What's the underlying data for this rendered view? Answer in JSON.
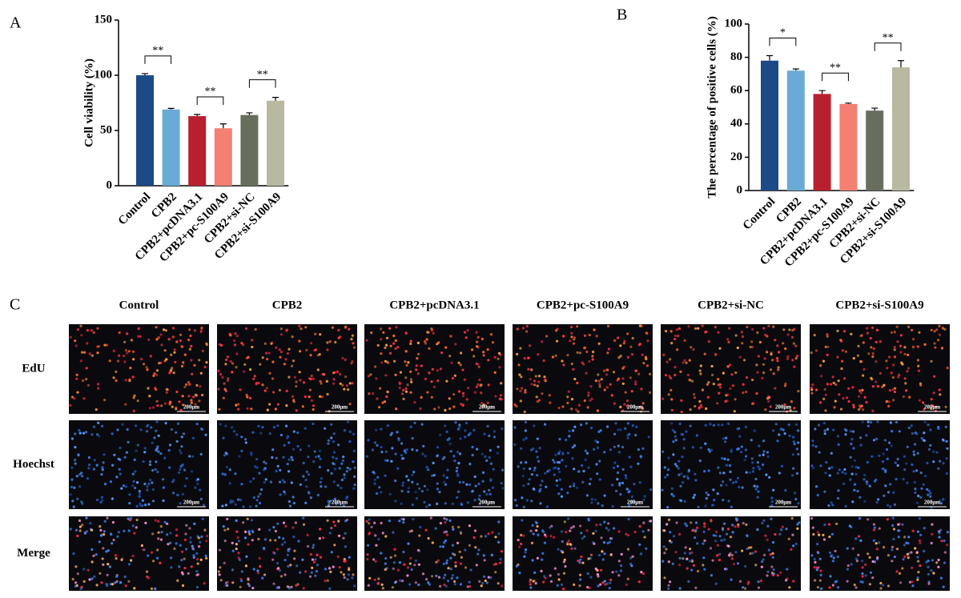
{
  "chart_data": [
    {
      "type": "bar",
      "panel_label": "A",
      "ylabel": "Cell viability (%)",
      "categories": [
        "Control",
        "CPB2",
        "CPB2+pcDNA3.1",
        "CPB2+pc-S100A9",
        "CPB2+si-NC",
        "CPB2+si-S100A9"
      ],
      "values": [
        100,
        69,
        63,
        52,
        64,
        77
      ],
      "errors": [
        1.5,
        1,
        1.5,
        4,
        2,
        3
      ],
      "colors": [
        "#1b4a86",
        "#6aaad6",
        "#b8202f",
        "#f47f73",
        "#676f5c",
        "#b9b9a2"
      ],
      "ylim": [
        0,
        150
      ],
      "yticks": [
        0,
        50,
        100,
        150
      ],
      "significance": [
        {
          "groups": [
            "Control",
            "CPB2"
          ],
          "label": "**"
        },
        {
          "groups": [
            "CPB2+pcDNA3.1",
            "CPB2+pc-S100A9"
          ],
          "label": "**"
        },
        {
          "groups": [
            "CPB2+si-NC",
            "CPB2+si-S100A9"
          ],
          "label": "**"
        }
      ]
    },
    {
      "type": "bar",
      "panel_label": "B",
      "ylabel": "The percentage of positive cells (%)",
      "categories": [
        "Control",
        "CPB2",
        "CPB2+pcDNA3.1",
        "CPB2+pc-S100A9",
        "CPB2+si-NC",
        "CPB2+si-S100A9"
      ],
      "values": [
        78,
        72,
        58,
        52,
        48,
        74
      ],
      "errors": [
        3,
        1,
        2,
        0.5,
        1.5,
        4
      ],
      "colors": [
        "#1b4a86",
        "#6aaad6",
        "#b8202f",
        "#f47f73",
        "#676f5c",
        "#b9b9a2"
      ],
      "ylim": [
        0,
        100
      ],
      "yticks": [
        0,
        20,
        40,
        60,
        80,
        100
      ],
      "significance": [
        {
          "groups": [
            "Control",
            "CPB2"
          ],
          "label": "*"
        },
        {
          "groups": [
            "CPB2+pcDNA3.1",
            "CPB2+pc-S100A9"
          ],
          "label": "**"
        },
        {
          "groups": [
            "CPB2+si-NC",
            "CPB2+si-S100A9"
          ],
          "label": "**"
        }
      ]
    }
  ],
  "image_panel": {
    "label": "C",
    "columns": [
      "Control",
      "CPB2",
      "CPB2+pcDNA3.1",
      "CPB2+pc-S100A9",
      "CPB2+si-NC",
      "CPB2+si-S100A9"
    ],
    "rows": [
      "EdU",
      "Hoechst",
      "Merge"
    ],
    "scale_bar": "200μm"
  }
}
